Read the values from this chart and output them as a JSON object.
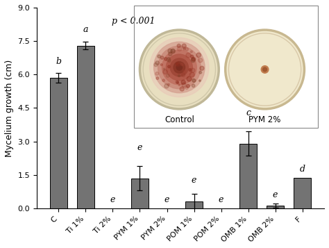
{
  "categories": [
    "C",
    "Ti 1%",
    "Ti 2%",
    "PYM 1%",
    "PYM 2%",
    "POM 1%",
    "POM 2%",
    "OMB 1%",
    "OMB 2%",
    "F"
  ],
  "values": [
    5.85,
    7.3,
    0.0,
    1.35,
    0.0,
    0.3,
    0.0,
    2.9,
    0.12,
    1.38
  ],
  "errors": [
    0.22,
    0.18,
    0.0,
    0.55,
    0.0,
    0.35,
    0.0,
    0.55,
    0.1,
    0.0
  ],
  "letters": [
    "b",
    "a",
    "e",
    "e",
    "e",
    "e",
    "e",
    "c",
    "e",
    "d"
  ],
  "bar_color": "#737373",
  "ylabel": "Mycelium growth (cm)",
  "ylim": [
    0,
    9.0
  ],
  "yticks": [
    0.0,
    1.5,
    3.0,
    4.5,
    6.0,
    7.5,
    9.0
  ],
  "pvalue_text": "p < 0.001",
  "inset_label1": "Control",
  "inset_label2": "PYM 2%",
  "figsize": [
    4.74,
    3.57
  ],
  "dpi": 100,
  "letter_offsets": [
    0.32,
    0.32,
    0.18,
    0.62,
    0.18,
    0.42,
    0.18,
    0.62,
    0.18,
    0.18
  ]
}
